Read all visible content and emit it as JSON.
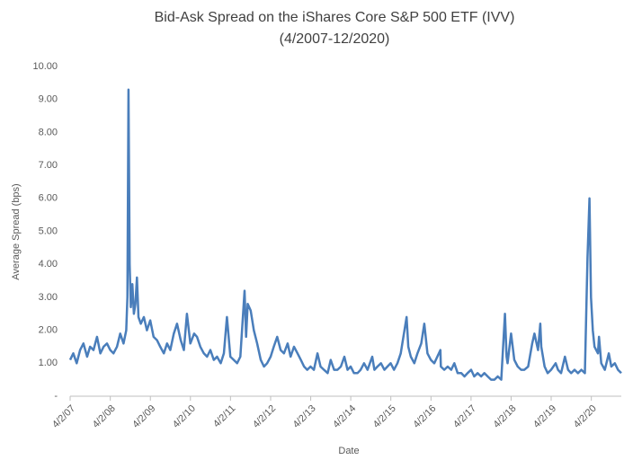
{
  "chart_data": {
    "type": "line",
    "title": "Bid-Ask Spread on the iShares Core S&P 500 ETF (IVV)",
    "subtitle": "(4/2007-12/2020)",
    "x_label": "Date",
    "y_label": "Average Spread (bps)",
    "grid": false,
    "xlim": [
      "2007-04-02",
      "2020-12-31"
    ],
    "xticks": [
      {
        "value": "2007-04-02",
        "label": "4/2/07"
      },
      {
        "value": "2008-04-02",
        "label": "4/2/08"
      },
      {
        "value": "2009-04-02",
        "label": "4/2/09"
      },
      {
        "value": "2010-04-02",
        "label": "4/2/10"
      },
      {
        "value": "2011-04-02",
        "label": "4/2/11"
      },
      {
        "value": "2012-04-02",
        "label": "4/2/12"
      },
      {
        "value": "2013-04-02",
        "label": "4/2/13"
      },
      {
        "value": "2014-04-02",
        "label": "4/2/14"
      },
      {
        "value": "2015-04-02",
        "label": "4/2/15"
      },
      {
        "value": "2016-04-02",
        "label": "4/2/16"
      },
      {
        "value": "2017-04-02",
        "label": "4/2/17"
      },
      {
        "value": "2018-04-02",
        "label": "4/2/18"
      },
      {
        "value": "2019-04-02",
        "label": "4/2/19"
      },
      {
        "value": "2020-04-02",
        "label": "4/2/20"
      }
    ],
    "ylim": [
      0,
      10
    ],
    "yticks": [
      {
        "value": 0,
        "label": "-"
      },
      {
        "value": 1,
        "label": "1.00"
      },
      {
        "value": 2,
        "label": "2.00"
      },
      {
        "value": 3,
        "label": "3.00"
      },
      {
        "value": 4,
        "label": "4.00"
      },
      {
        "value": 5,
        "label": "5.00"
      },
      {
        "value": 6,
        "label": "6.00"
      },
      {
        "value": 7,
        "label": "7.00"
      },
      {
        "value": 8,
        "label": "8.00"
      },
      {
        "value": 9,
        "label": "9.00"
      },
      {
        "value": 10,
        "label": "10.00"
      }
    ],
    "x": [
      "2007-04-02",
      "2007-05-01",
      "2007-06-01",
      "2007-07-02",
      "2007-08-01",
      "2007-09-04",
      "2007-10-01",
      "2007-11-01",
      "2007-12-03",
      "2008-01-02",
      "2008-02-01",
      "2008-03-03",
      "2008-04-01",
      "2008-05-01",
      "2008-06-02",
      "2008-07-01",
      "2008-08-01",
      "2008-08-25",
      "2008-09-05",
      "2008-09-15",
      "2008-09-25",
      "2008-10-06",
      "2008-10-20",
      "2008-11-03",
      "2008-11-17",
      "2008-12-01",
      "2008-12-15",
      "2009-01-05",
      "2009-02-02",
      "2009-03-02",
      "2009-04-01",
      "2009-05-01",
      "2009-06-01",
      "2009-07-01",
      "2009-08-03",
      "2009-09-01",
      "2009-10-01",
      "2009-11-02",
      "2009-12-01",
      "2010-01-04",
      "2010-02-01",
      "2010-03-01",
      "2010-04-01",
      "2010-05-06",
      "2010-06-01",
      "2010-07-01",
      "2010-08-02",
      "2010-09-01",
      "2010-10-01",
      "2010-11-01",
      "2010-12-01",
      "2011-01-03",
      "2011-02-01",
      "2011-03-01",
      "2011-04-01",
      "2011-05-02",
      "2011-06-01",
      "2011-07-01",
      "2011-08-08",
      "2011-08-22",
      "2011-09-06",
      "2011-10-03",
      "2011-11-01",
      "2011-12-01",
      "2012-01-03",
      "2012-02-01",
      "2012-03-01",
      "2012-04-02",
      "2012-05-01",
      "2012-06-01",
      "2012-07-02",
      "2012-08-01",
      "2012-09-04",
      "2012-10-01",
      "2012-11-01",
      "2012-12-03",
      "2013-01-02",
      "2013-02-01",
      "2013-03-01",
      "2013-04-01",
      "2013-05-01",
      "2013-06-03",
      "2013-07-01",
      "2013-08-01",
      "2013-09-03",
      "2013-10-01",
      "2013-11-01",
      "2013-12-02",
      "2014-01-02",
      "2014-02-03",
      "2014-03-03",
      "2014-04-01",
      "2014-05-01",
      "2014-06-02",
      "2014-07-01",
      "2014-08-01",
      "2014-09-02",
      "2014-10-15",
      "2014-11-03",
      "2014-12-01",
      "2015-01-02",
      "2015-02-02",
      "2015-03-02",
      "2015-04-01",
      "2015-05-01",
      "2015-06-01",
      "2015-07-01",
      "2015-08-24",
      "2015-09-08",
      "2015-10-01",
      "2015-11-02",
      "2015-12-01",
      "2016-01-04",
      "2016-02-01",
      "2016-03-01",
      "2016-04-01",
      "2016-05-02",
      "2016-06-27",
      "2016-07-01",
      "2016-08-01",
      "2016-09-01",
      "2016-10-03",
      "2016-11-01",
      "2016-12-01",
      "2017-01-03",
      "2017-02-01",
      "2017-03-01",
      "2017-04-03",
      "2017-05-01",
      "2017-06-01",
      "2017-07-03",
      "2017-08-01",
      "2017-09-01",
      "2017-10-02",
      "2017-11-01",
      "2017-12-01",
      "2018-01-02",
      "2018-02-05",
      "2018-02-20",
      "2018-03-01",
      "2018-04-02",
      "2018-05-01",
      "2018-06-01",
      "2018-07-02",
      "2018-08-01",
      "2018-09-04",
      "2018-10-11",
      "2018-11-01",
      "2018-12-03",
      "2018-12-24",
      "2019-01-02",
      "2019-02-01",
      "2019-03-01",
      "2019-04-01",
      "2019-05-13",
      "2019-06-03",
      "2019-07-01",
      "2019-08-05",
      "2019-09-03",
      "2019-10-01",
      "2019-11-01",
      "2019-12-02",
      "2020-01-02",
      "2020-02-03",
      "2020-02-27",
      "2020-03-16",
      "2020-03-30",
      "2020-04-15",
      "2020-05-01",
      "2020-06-01",
      "2020-06-11",
      "2020-07-01",
      "2020-08-03",
      "2020-09-08",
      "2020-10-01",
      "2020-11-02",
      "2020-12-01",
      "2020-12-31"
    ],
    "series": [
      {
        "name": "Average Spread",
        "color": "#4a7ebb",
        "values": [
          1.1,
          1.3,
          1.0,
          1.4,
          1.6,
          1.2,
          1.5,
          1.4,
          1.8,
          1.3,
          1.5,
          1.6,
          1.4,
          1.3,
          1.5,
          1.9,
          1.6,
          2.0,
          3.0,
          9.3,
          4.0,
          2.7,
          3.4,
          2.5,
          2.8,
          3.6,
          2.4,
          2.2,
          2.4,
          2.0,
          2.3,
          1.8,
          1.7,
          1.5,
          1.3,
          1.6,
          1.4,
          1.9,
          2.2,
          1.7,
          1.4,
          2.5,
          1.6,
          1.9,
          1.8,
          1.5,
          1.3,
          1.2,
          1.4,
          1.1,
          1.2,
          1.0,
          1.3,
          2.4,
          1.2,
          1.1,
          1.0,
          1.2,
          3.2,
          1.8,
          2.8,
          2.6,
          2.0,
          1.6,
          1.1,
          0.9,
          1.0,
          1.2,
          1.5,
          1.8,
          1.4,
          1.3,
          1.6,
          1.2,
          1.5,
          1.3,
          1.1,
          0.9,
          0.8,
          0.9,
          0.8,
          1.3,
          0.9,
          0.8,
          0.7,
          1.1,
          0.8,
          0.8,
          0.9,
          1.2,
          0.8,
          0.9,
          0.7,
          0.7,
          0.8,
          1.0,
          0.8,
          1.2,
          0.8,
          0.9,
          1.0,
          0.8,
          0.9,
          1.0,
          0.8,
          1.0,
          1.3,
          2.4,
          1.5,
          1.2,
          1.0,
          1.3,
          1.6,
          2.2,
          1.3,
          1.1,
          1.0,
          1.4,
          0.9,
          0.8,
          0.9,
          0.8,
          1.0,
          0.7,
          0.7,
          0.6,
          0.7,
          0.8,
          0.6,
          0.7,
          0.6,
          0.7,
          0.6,
          0.5,
          0.5,
          0.6,
          0.5,
          2.5,
          1.2,
          1.0,
          1.9,
          1.1,
          0.9,
          0.8,
          0.8,
          0.9,
          1.6,
          1.9,
          1.4,
          2.2,
          1.5,
          0.9,
          0.7,
          0.8,
          1.0,
          0.8,
          0.7,
          1.2,
          0.8,
          0.7,
          0.8,
          0.7,
          0.8,
          0.7,
          4.2,
          6.0,
          3.0,
          2.0,
          1.5,
          1.3,
          1.8,
          1.0,
          0.8,
          1.3,
          0.9,
          1.0,
          0.8,
          0.7
        ]
      }
    ]
  }
}
